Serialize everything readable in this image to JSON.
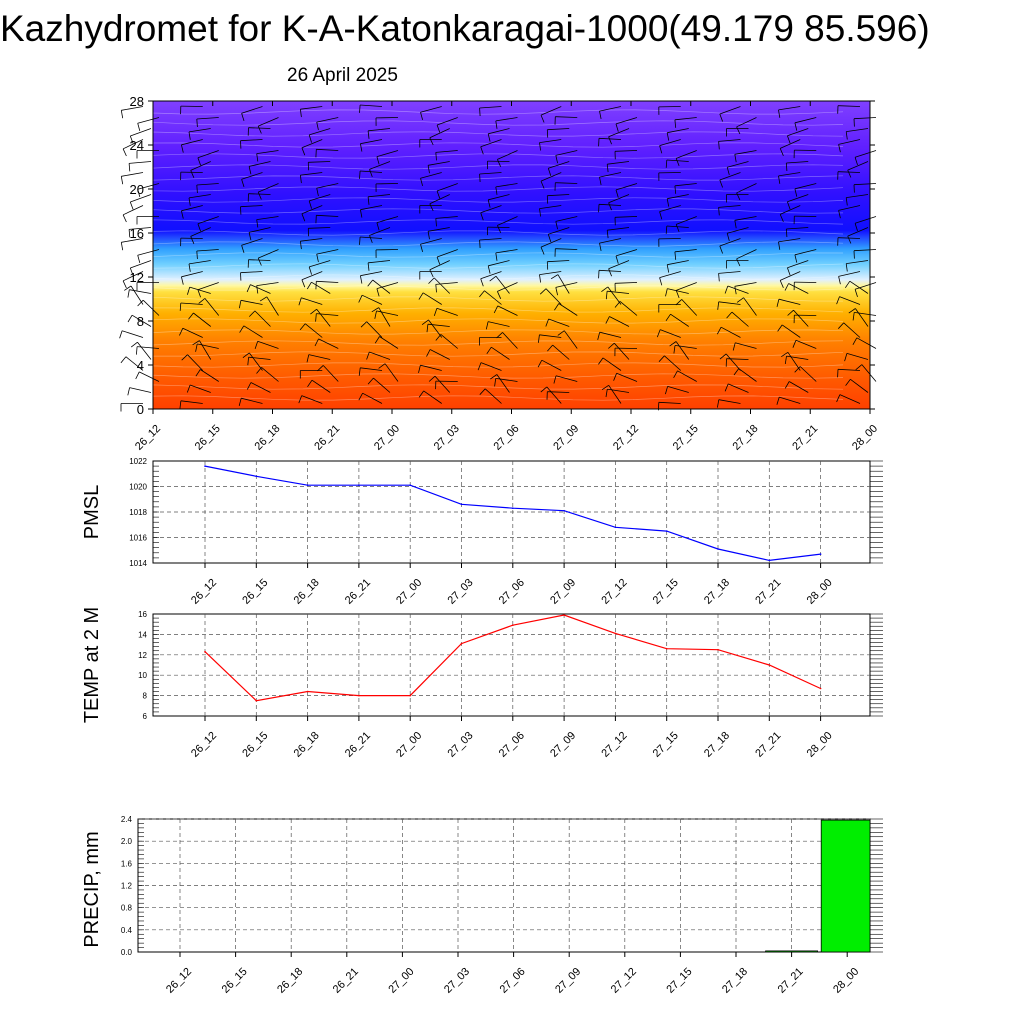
{
  "title": "Kazhydromet for K-A-Katonkaragai-1000(49.179 85.596)",
  "subtitle": "26 April 2025",
  "colors": {
    "pmsl": "#0000ff",
    "temp": "#ff0000",
    "precip": "#00ee00"
  },
  "chart_data": [
    {
      "type": "heatmap",
      "title": "",
      "xlabel": "",
      "ylabel": "",
      "x_tick_labels": [
        "26_12",
        "26_15",
        "26_18",
        "26_21",
        "27_00",
        "27_03",
        "27_06",
        "27_09",
        "27_12",
        "27_15",
        "27_18",
        "27_21",
        "28_00"
      ],
      "y_ticks": [
        0,
        4,
        8,
        12,
        16,
        20,
        24,
        28
      ],
      "ylim": [
        0,
        28
      ],
      "color_bands_bottom_to_top": [
        "#ff4000",
        "#ff8000",
        "#ffc000",
        "#fff080",
        "#40c0ff",
        "#2020ff",
        "#6020ff",
        "#8040ff"
      ],
      "wind_barbs": true
    },
    {
      "type": "line",
      "ylabel": "PMSL",
      "x": [
        "26_12",
        "26_15",
        "26_18",
        "26_21",
        "27_00",
        "27_03",
        "27_06",
        "27_09",
        "27_12",
        "27_15",
        "27_18",
        "27_21",
        "28_00"
      ],
      "values": [
        1021.6,
        1020.8,
        1020.1,
        1020.1,
        1020.1,
        1018.6,
        1018.3,
        1018.1,
        1016.8,
        1016.5,
        1015.1,
        1014.2,
        1014.7
      ],
      "y_ticks": [
        1014,
        1016,
        1018,
        1020,
        1022
      ],
      "ylim": [
        1014,
        1022
      ],
      "grid": true
    },
    {
      "type": "line",
      "ylabel": "TEMP at 2 M",
      "x": [
        "26_12",
        "26_15",
        "26_18",
        "26_21",
        "27_00",
        "27_03",
        "27_06",
        "27_09",
        "27_12",
        "27_15",
        "27_18",
        "27_21",
        "28_00"
      ],
      "values": [
        12.3,
        7.5,
        8.4,
        8.0,
        8.0,
        13.1,
        14.9,
        15.9,
        14.1,
        12.6,
        12.5,
        11.0,
        8.7
      ],
      "y_ticks": [
        6,
        8,
        10,
        12,
        14,
        16
      ],
      "ylim": [
        6,
        16
      ],
      "grid": true
    },
    {
      "type": "bar",
      "ylabel": "PRECIP, mm",
      "categories": [
        "26_12",
        "26_15",
        "26_18",
        "26_21",
        "27_00",
        "27_03",
        "27_06",
        "27_09",
        "27_12",
        "27_15",
        "27_18",
        "27_21",
        "28_00"
      ],
      "values": [
        0,
        0,
        0,
        0,
        0,
        0,
        0,
        0,
        0,
        0,
        0,
        0.02,
        2.38
      ],
      "y_ticks": [
        "0.0",
        "0.4",
        "0.8",
        "1.2",
        "1.6",
        "2.0",
        "2.4"
      ],
      "ylim": [
        0,
        2.4
      ],
      "grid": true
    }
  ]
}
